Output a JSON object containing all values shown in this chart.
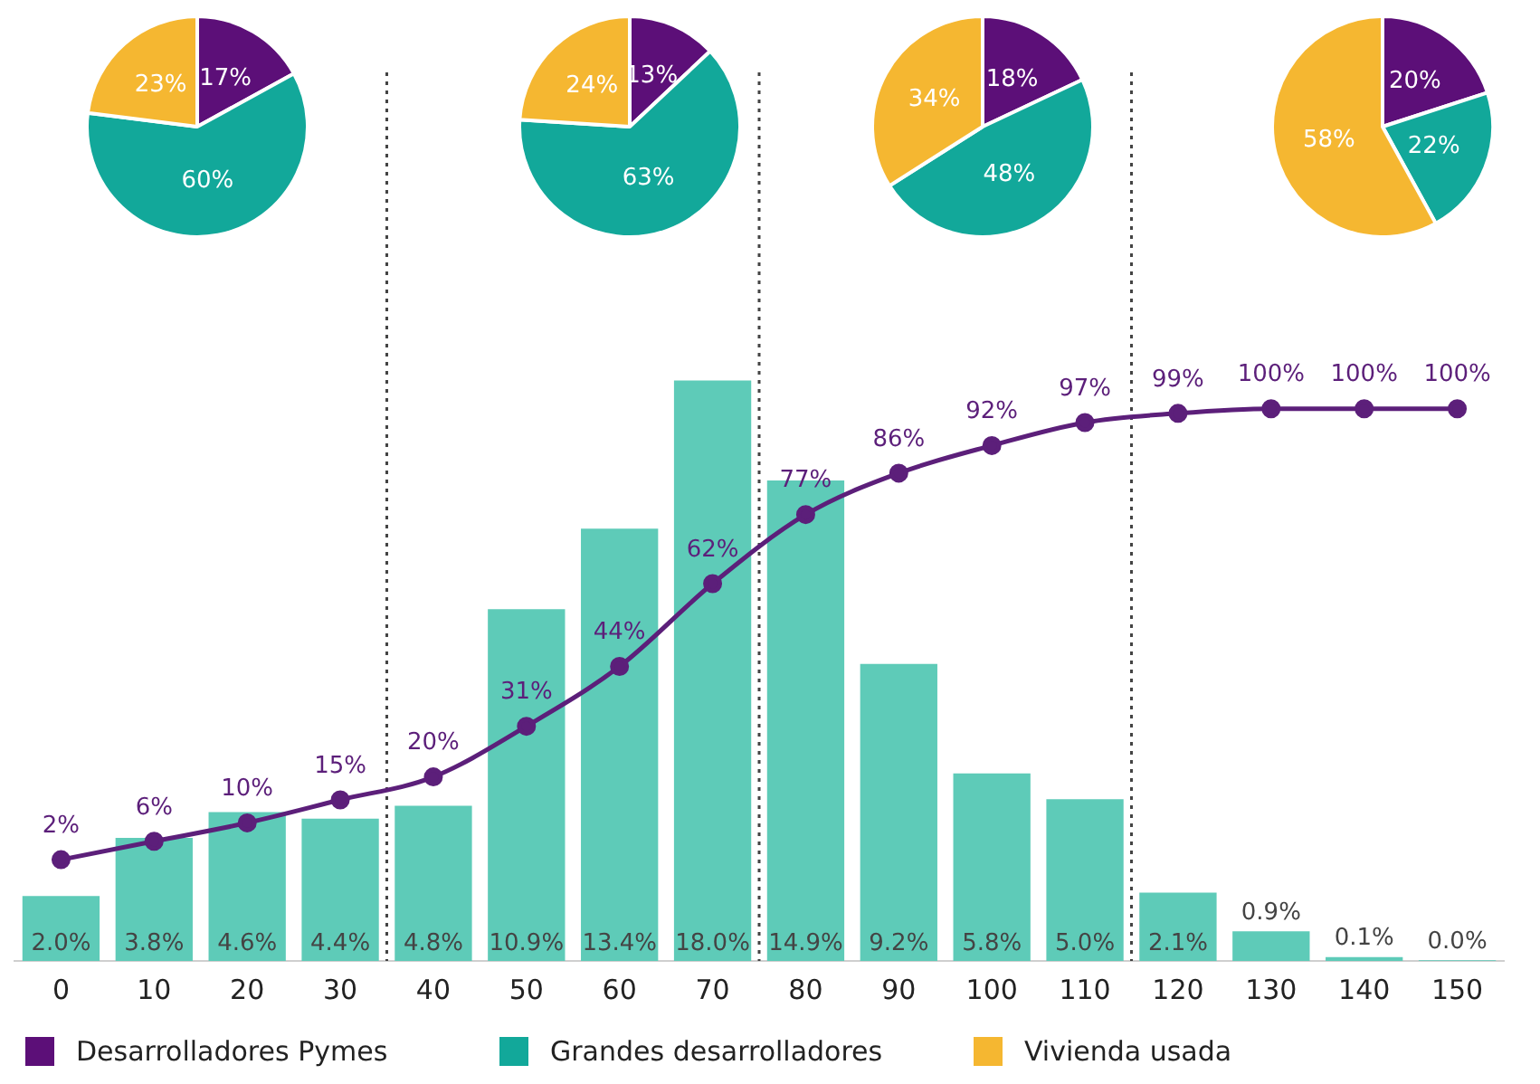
{
  "chart_data": [
    {
      "type": "pie",
      "categories": [
        "Desarrolladores Pymes",
        "Grandes desarrolladores",
        "Vivienda usada"
      ],
      "colors": [
        "#5c0f78",
        "#12a89a",
        "#f5b731"
      ],
      "values": [
        17,
        60,
        23
      ],
      "value_labels": [
        "17%",
        "60%",
        "23%"
      ],
      "legend": "bottom"
    },
    {
      "type": "pie",
      "categories": [
        null,
        null,
        null
      ],
      "colors": [
        "#5c0f78",
        "#12a89a",
        "#f5b731"
      ],
      "values": [
        13,
        63,
        24
      ],
      "value_labels": [
        "13%",
        "63%",
        "24%"
      ]
    },
    {
      "type": "pie",
      "categories": [
        null,
        null,
        null
      ],
      "colors": [
        "#5c0f78",
        "#12a89a",
        "#f5b731"
      ],
      "values": [
        18,
        48,
        34
      ],
      "value_labels": [
        "18%",
        "48%",
        "34%"
      ]
    },
    {
      "type": "pie",
      "categories": [
        null,
        null,
        null
      ],
      "colors": [
        "#5c0f78",
        "#12a89a",
        "#f5b731"
      ],
      "values": [
        20,
        22,
        58
      ],
      "value_labels": [
        "20%",
        "22%",
        "58%"
      ]
    },
    {
      "type": "bar",
      "x": [
        0,
        10,
        20,
        30,
        40,
        50,
        60,
        70,
        80,
        90,
        100,
        110,
        120,
        130,
        140,
        150
      ],
      "xlim": [
        -5,
        155
      ],
      "xticks": [
        0,
        10,
        20,
        30,
        40,
        50,
        60,
        70,
        80,
        90,
        100,
        110,
        120,
        130,
        140,
        150
      ],
      "tick_labels": "x",
      "marker": "circle",
      "series": [
        {
          "type": "bar",
          "color": "#5ecbb8",
          "values": [
            2.0,
            3.8,
            4.6,
            4.4,
            4.8,
            10.9,
            13.4,
            18.0,
            14.9,
            9.2,
            5.8,
            5.0,
            2.1,
            0.9,
            0.1,
            0.0
          ],
          "value_labels": [
            "2.0%",
            "3.8%",
            "4.6%",
            "4.4%",
            "4.8%",
            "10.9%",
            "13.4%",
            "18.0%",
            "14.9%",
            "9.2%",
            "5.8%",
            "5.0%",
            "2.1%",
            "0.9%",
            "0.1%",
            "0.0%"
          ]
        },
        {
          "type": "line",
          "axis": "y2",
          "color": "#5c1f7a",
          "values": [
            2,
            6,
            10,
            15,
            20,
            31,
            44,
            62,
            77,
            86,
            92,
            97,
            99,
            100,
            100,
            100
          ],
          "value_labels": [
            "2%",
            "6%",
            "10%",
            "15%",
            "20%",
            "31%",
            "44%",
            "62%",
            "77%",
            "86%",
            "92%",
            "97%",
            "99%",
            "100%",
            "100%",
            "100%"
          ]
        }
      ],
      "ref_lines": [
        {
          "axis": "x",
          "value": 35,
          "color": "#444444",
          "line_style": "dotted"
        },
        {
          "axis": "x",
          "value": 75,
          "color": "#444444",
          "line_style": "dotted"
        },
        {
          "axis": "x",
          "value": 115,
          "color": "#444444",
          "line_style": "dotted"
        }
      ]
    }
  ]
}
